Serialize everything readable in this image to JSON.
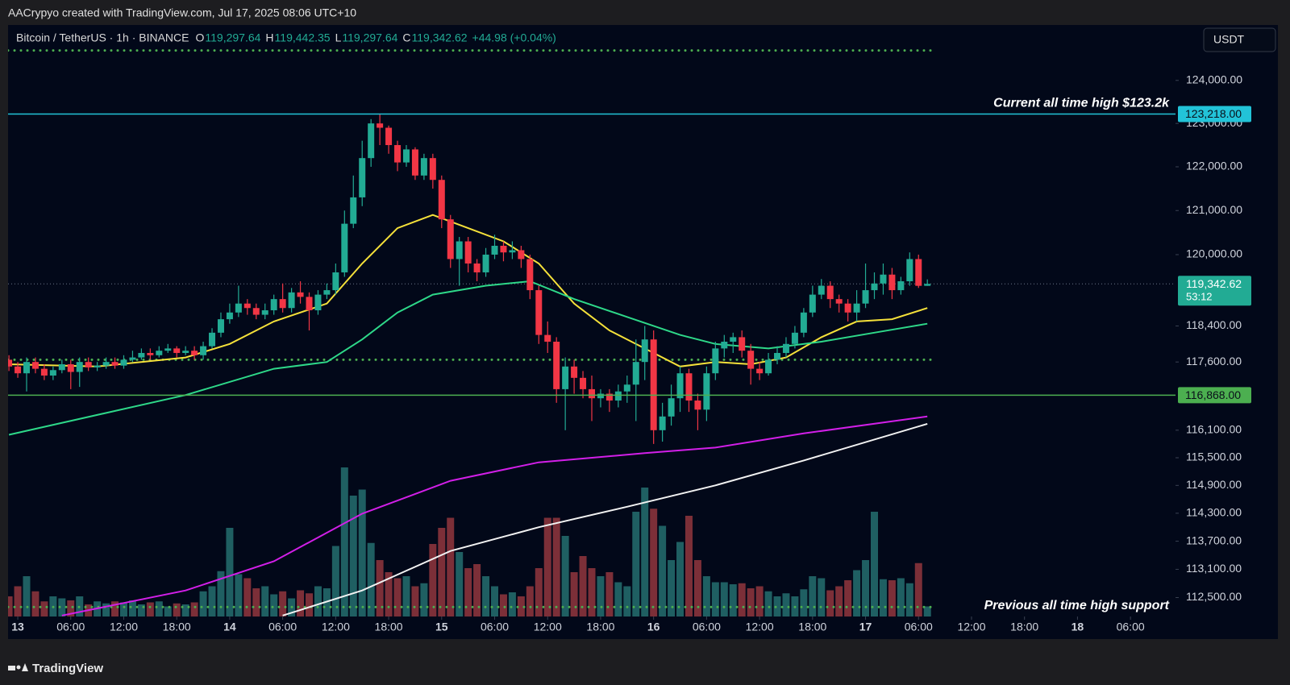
{
  "watermark": "AACrypyo created with TradingView.com, Jul 17, 2025 08:06 UTC+10",
  "legend": {
    "symbol": "Bitcoin / TetherUS · 1h · BINANCE",
    "ohlc": [
      {
        "key": "O",
        "value": "119,297.64"
      },
      {
        "key": "H",
        "value": "119,442.35"
      },
      {
        "key": "L",
        "value": "119,297.64"
      },
      {
        "key": "C",
        "value": "119,342.62"
      }
    ],
    "change": "+44.98 (+0.04%)"
  },
  "currency_button": "USDT",
  "footer": "TradingView",
  "chart_data": {
    "type": "candlestick",
    "log_scale": true,
    "up_color": "#22ab94",
    "down_color": "#f23645",
    "volume_up_color": "#1f5f62",
    "volume_down_color": "#7c2f38",
    "xlim": [
      -0.1,
      132.1
    ],
    "ylim": [
      112100,
      125300
    ],
    "xticks": [
      {
        "value": 1,
        "label": "13"
      },
      {
        "value": 7,
        "label": "06:00"
      },
      {
        "value": 13,
        "label": "12:00"
      },
      {
        "value": 19,
        "label": "18:00"
      },
      {
        "value": 25,
        "label": "14"
      },
      {
        "value": 31,
        "label": "06:00"
      },
      {
        "value": 37,
        "label": "12:00"
      },
      {
        "value": 43,
        "label": "18:00"
      },
      {
        "value": 49,
        "label": "15"
      },
      {
        "value": 55,
        "label": "06:00"
      },
      {
        "value": 61,
        "label": "12:00"
      },
      {
        "value": 67,
        "label": "18:00"
      },
      {
        "value": 73,
        "label": "16"
      },
      {
        "value": 79,
        "label": "06:00"
      },
      {
        "value": 85,
        "label": "12:00"
      },
      {
        "value": 91,
        "label": "18:00"
      },
      {
        "value": 97,
        "label": "17"
      },
      {
        "value": 103,
        "label": "06:00"
      },
      {
        "value": 109,
        "label": "12:00"
      },
      {
        "value": 115,
        "label": "18:00"
      },
      {
        "value": 121,
        "label": "18"
      },
      {
        "value": 127,
        "label": "06:00"
      }
    ],
    "yticks": [
      {
        "value": 124000,
        "label": "124,000.00"
      },
      {
        "value": 123000,
        "label": "123,000.00"
      },
      {
        "value": 122000,
        "label": "122,000.00"
      },
      {
        "value": 121000,
        "label": "121,000.00"
      },
      {
        "value": 120000,
        "label": "120,000.00"
      },
      {
        "value": 118400,
        "label": "118,400.00"
      },
      {
        "value": 117600,
        "label": "117,600.00"
      },
      {
        "value": 116100,
        "label": "116,100.00"
      },
      {
        "value": 115500,
        "label": "115,500.00"
      },
      {
        "value": 114900,
        "label": "114,900.00"
      },
      {
        "value": 114300,
        "label": "114,300.00"
      },
      {
        "value": 113700,
        "label": "113,700.00"
      },
      {
        "value": 113100,
        "label": "113,100.00"
      },
      {
        "value": 112500,
        "label": "112,500.00"
      }
    ],
    "open": [
      117650,
      117500,
      117350,
      117600,
      117450,
      117300,
      117420,
      117550,
      117380,
      117600,
      117480,
      117520,
      117600,
      117520,
      117650,
      117700,
      117800,
      117750,
      117850,
      117900,
      117800,
      117850,
      117750,
      117950,
      118250,
      118550,
      118700,
      118900,
      118800,
      118650,
      118750,
      119000,
      118800,
      119150,
      119050,
      118750,
      119100,
      119200,
      119600,
      120700,
      121300,
      122200,
      123000,
      122900,
      122500,
      122100,
      122400,
      121800,
      122200,
      121700,
      120800,
      119900,
      120300,
      119800,
      119600,
      120000,
      120200,
      120050,
      120100,
      119900,
      119200,
      118200,
      118050,
      117000,
      117500,
      117250,
      117000,
      116800,
      116900,
      116750,
      116950,
      117100,
      117600,
      118100,
      116100,
      116400,
      116800,
      117350,
      116750,
      116550,
      117350,
      117900,
      118050,
      118150,
      117850,
      117450,
      117350,
      117650,
      117800,
      118000,
      118250,
      118700,
      119100,
      119300,
      119000,
      118900,
      118700,
      118900,
      119200,
      119350,
      119550,
      119200,
      119400,
      119900,
      119297.64
    ],
    "high": [
      117750,
      117600,
      117700,
      117700,
      117550,
      117500,
      117650,
      117650,
      117700,
      117700,
      117600,
      117700,
      117700,
      117750,
      117850,
      117900,
      117900,
      117950,
      118000,
      117950,
      117950,
      117950,
      118050,
      118350,
      118700,
      118900,
      119300,
      119000,
      118900,
      118900,
      119100,
      119350,
      119250,
      119400,
      119150,
      119200,
      119350,
      119800,
      121000,
      121800,
      122600,
      123100,
      123218,
      122950,
      122600,
      122500,
      122450,
      122300,
      122300,
      121800,
      120900,
      120400,
      120400,
      119900,
      120150,
      120450,
      120300,
      120300,
      120200,
      120000,
      119300,
      118500,
      118150,
      117700,
      117650,
      117400,
      117300,
      117000,
      117000,
      117100,
      117300,
      118100,
      118400,
      118300,
      116700,
      117100,
      117500,
      117450,
      116900,
      117500,
      118050,
      118200,
      118250,
      118300,
      118000,
      117600,
      117800,
      117950,
      118150,
      118400,
      118800,
      119300,
      119450,
      119400,
      119100,
      119000,
      119200,
      119800,
      119600,
      119800,
      119700,
      119500,
      120050,
      120000,
      119442.35
    ],
    "low": [
      117400,
      117250,
      116950,
      117350,
      117200,
      117200,
      117350,
      117000,
      117050,
      117400,
      117400,
      117450,
      117450,
      117450,
      117600,
      117650,
      117650,
      117700,
      117800,
      117700,
      117750,
      117650,
      117650,
      117900,
      118150,
      118450,
      118600,
      118650,
      118550,
      118550,
      118650,
      118700,
      118700,
      118900,
      118300,
      118650,
      119000,
      119100,
      119500,
      120600,
      121100,
      122000,
      122500,
      122300,
      121900,
      122000,
      121700,
      121700,
      121500,
      120600,
      119700,
      119300,
      119600,
      119400,
      119500,
      119900,
      119850,
      119900,
      119700,
      119000,
      118000,
      117800,
      116700,
      116100,
      116900,
      116800,
      116300,
      116600,
      116500,
      116600,
      116700,
      116300,
      117200,
      115800,
      115850,
      116200,
      116500,
      116500,
      116100,
      116300,
      117200,
      117700,
      117800,
      117700,
      117100,
      117200,
      117300,
      117550,
      117700,
      117900,
      118150,
      118600,
      119000,
      118800,
      118700,
      118500,
      118500,
      118800,
      119000,
      119100,
      119000,
      119100,
      119300,
      119250,
      119297.64
    ],
    "close": [
      117500,
      117350,
      117600,
      117450,
      117300,
      117420,
      117550,
      117380,
      117600,
      117480,
      117520,
      117600,
      117520,
      117650,
      117700,
      117800,
      117750,
      117850,
      117900,
      117800,
      117850,
      117750,
      117950,
      118250,
      118550,
      118700,
      118900,
      118800,
      118650,
      118750,
      119000,
      118800,
      119150,
      119050,
      118750,
      119100,
      119200,
      119600,
      120700,
      121300,
      122200,
      123000,
      122900,
      122500,
      122100,
      122400,
      121800,
      122200,
      121700,
      120800,
      119900,
      120300,
      119800,
      119600,
      120000,
      120200,
      120050,
      120100,
      119900,
      119200,
      118200,
      118050,
      117000,
      117500,
      117250,
      117000,
      116800,
      116900,
      116750,
      116950,
      117100,
      117600,
      118100,
      116100,
      116400,
      116800,
      117350,
      116750,
      116550,
      117350,
      117900,
      118050,
      118150,
      117850,
      117450,
      117350,
      117650,
      117800,
      118000,
      118250,
      118700,
      119100,
      119300,
      119000,
      118900,
      118700,
      118900,
      119200,
      119350,
      119550,
      119200,
      119400,
      119900,
      119297.64,
      119342.62
    ],
    "volume_lim": [
      0,
      1600
    ],
    "volume": [
      200,
      300,
      400,
      250,
      150,
      200,
      180,
      160,
      200,
      120,
      150,
      130,
      150,
      140,
      160,
      120,
      140,
      150,
      100,
      130,
      120,
      140,
      250,
      300,
      450,
      880,
      420,
      380,
      280,
      300,
      220,
      250,
      180,
      260,
      230,
      300,
      280,
      700,
      1480,
      1200,
      1260,
      730,
      560,
      440,
      380,
      400,
      300,
      330,
      720,
      880,
      980,
      640,
      480,
      520,
      400,
      300,
      220,
      240,
      200,
      300,
      480,
      980,
      980,
      800,
      440,
      600,
      480,
      400,
      440,
      340,
      300,
      1040,
      1280,
      1070,
      900,
      560,
      740,
      1000,
      560,
      400,
      340,
      340,
      320,
      330,
      280,
      300,
      250,
      200,
      230,
      200,
      270,
      400,
      380,
      260,
      300,
      360,
      460,
      560,
      1040,
      370,
      360,
      380,
      330,
      530,
      100
    ],
    "series": [
      {
        "color": "#f5e13a",
        "x": [
          0,
          10,
          20,
          25,
          30,
          36,
          40,
          44,
          48,
          52,
          56,
          60,
          64,
          68,
          72,
          76,
          80,
          84,
          88,
          92,
          96,
          100,
          104
        ],
        "values": [
          117550,
          117500,
          117700,
          118000,
          118500,
          118900,
          119800,
          120600,
          120900,
          120600,
          120300,
          119800,
          118900,
          118300,
          117900,
          117500,
          117600,
          117550,
          117700,
          118150,
          118500,
          118550,
          118800
        ]
      },
      {
        "color": "#2ed889",
        "x": [
          0,
          20,
          30,
          36,
          40,
          44,
          48,
          54,
          59,
          64,
          70,
          76,
          80,
          86,
          92,
          98,
          104
        ],
        "values": [
          116000,
          116870,
          117450,
          117600,
          118100,
          118700,
          119100,
          119300,
          119400,
          119000,
          118600,
          118200,
          118000,
          117900,
          118050,
          118250,
          118450
        ]
      },
      {
        "color": "#d21fe8",
        "x": [
          6,
          20,
          30,
          40,
          50,
          60,
          72,
          80,
          90,
          104
        ],
        "values": [
          112120,
          112650,
          113270,
          114290,
          115000,
          115400,
          115600,
          115720,
          116030,
          116400
        ]
      },
      {
        "color": "#f2f2f2",
        "x": [
          31,
          40,
          50,
          60,
          70,
          80,
          90,
          104
        ],
        "values": [
          112120,
          112650,
          113490,
          114000,
          114440,
          114900,
          115440,
          116240
        ]
      }
    ],
    "levels": [
      {
        "value": 123218,
        "label": "123,218.00",
        "color": "#22c3d8"
      },
      {
        "value": 116868,
        "label": "116,868.00",
        "color": "#4caf50"
      }
    ],
    "dotted_levels": [
      124700,
      117650,
      112300
    ],
    "dotted_color": "#4caf50",
    "last_price": {
      "value": 119342.62,
      "label": "119,342.62",
      "countdown": "53:12",
      "color": "#22ab94"
    },
    "annotations": [
      {
        "text": "Current all time high $123.2k",
        "value": 123218
      },
      {
        "text": "Previous all time high support",
        "value": 112100
      }
    ]
  }
}
